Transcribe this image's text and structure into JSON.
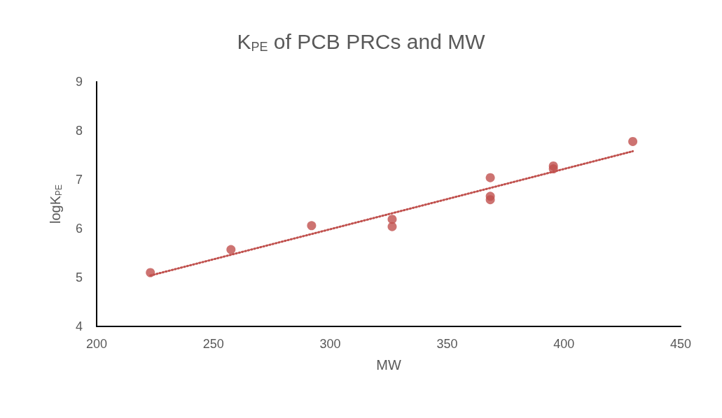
{
  "chart_data": {
    "type": "scatter",
    "title": "K$_{PE}$ of PCB PRCs and MW",
    "xlabel": "MW",
    "ylabel": "logK$_{PE}$",
    "x": [
      223,
      257.5,
      292,
      326.5,
      326.5,
      368.5,
      368.5,
      368.5,
      395.5,
      395.5,
      429.5
    ],
    "series": [
      {
        "color": "#c0504d",
        "values": [
          5.1,
          5.57,
          6.06,
          6.19,
          6.04,
          7.04,
          6.66,
          6.59,
          7.28,
          7.22,
          7.78
        ]
      },
      {
        "type": "line",
        "color": "#c0504d",
        "x": [
          223,
          429.5
        ],
        "values": [
          5.04,
          7.58
        ],
        "line_style": "dotted",
        "marker": "none"
      }
    ],
    "marker": "circle",
    "grid": false,
    "xlim": [
      200,
      450
    ],
    "xticks": [
      200,
      250,
      300,
      350,
      400,
      450
    ],
    "ylim": [
      4,
      9
    ],
    "yticks": [
      4,
      5,
      6,
      7,
      8,
      9
    ]
  }
}
